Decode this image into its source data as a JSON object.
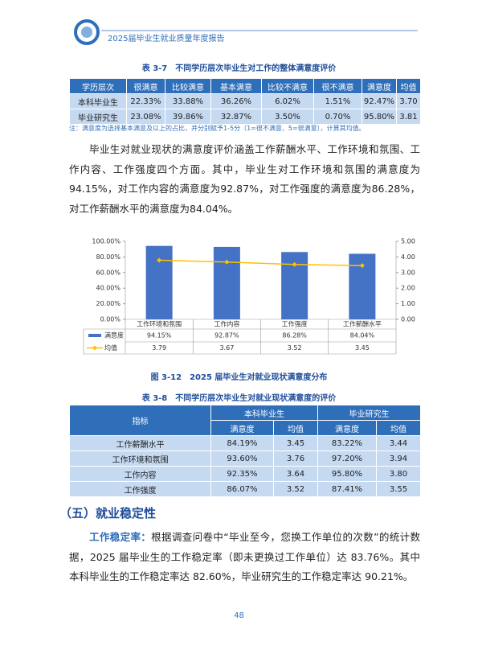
{
  "header": {
    "title": "2025届毕业生就业质量年度报告"
  },
  "table1": {
    "title": "表 3-7　不同学历层次毕业生对工作的整体满意度评价",
    "columns": [
      "学历层次",
      "很满意",
      "比较满意",
      "基本满意",
      "比较不满意",
      "很不满意",
      "满意度",
      "均值"
    ],
    "rows": [
      [
        "本科毕业生",
        "22.33%",
        "33.88%",
        "36.26%",
        "6.02%",
        "1.51%",
        "92.47%",
        "3.70"
      ],
      [
        "毕业研究生",
        "23.08%",
        "39.86%",
        "32.87%",
        "3.50%",
        "0.70%",
        "95.80%",
        "3.81"
      ]
    ],
    "note": "注：满意度为选择基本满意及以上的占比，并分别赋予1-5分（1=很不满意、5=很满意），计算其均值。"
  },
  "paragraph1": "毕业生对就业现状的满意度评价涵盖工作薪酬水平、工作环境和氛围、工作内容、工作强度四个方面。其中，毕业生对工作环境和氛围的满意度为 94.15%，对工作内容的满意度为92.87%，对工作强度的满意度为86.28%，对工作薪酬水平的满意度为84.04%。",
  "chart_data": {
    "type": "bar",
    "categories": [
      "工作环境和氛围",
      "工作内容",
      "工作强度",
      "工作薪酬水平"
    ],
    "series": [
      {
        "name": "满意度",
        "type": "bar",
        "color": "#4472c4",
        "values": [
          94.15,
          92.87,
          86.28,
          84.04
        ],
        "value_labels": [
          "94.15%",
          "92.87%",
          "86.28%",
          "84.04%"
        ]
      },
      {
        "name": "均值",
        "type": "line",
        "color": "#ffc000",
        "axis": "y2",
        "values": [
          3.79,
          3.67,
          3.52,
          3.45
        ]
      }
    ],
    "ylim": [
      0,
      100
    ],
    "yticks": [
      {
        "value": 0,
        "label": "0.00%"
      },
      {
        "value": 20,
        "label": "20.00%"
      },
      {
        "value": 40,
        "label": "40.00%"
      },
      {
        "value": 60,
        "label": "60.00%"
      },
      {
        "value": 80,
        "label": "80.00%"
      },
      {
        "value": 100,
        "label": "100.00%"
      }
    ],
    "y2lim": [
      0,
      5
    ],
    "y2ticks": [
      {
        "value": 0,
        "label": "0.00"
      },
      {
        "value": 1,
        "label": "1.00"
      },
      {
        "value": 2,
        "label": "2.00"
      },
      {
        "value": 3,
        "label": "3.00"
      },
      {
        "value": 4,
        "label": "4.00"
      },
      {
        "value": 5,
        "label": "5.00"
      }
    ]
  },
  "figure_caption": "图 3-12　2025 届毕业生对就业现状满意度分布",
  "table2": {
    "title": "表 3-8　不同学历层次毕业生对就业现状满意度的评价",
    "group_header": [
      "指标",
      "本科毕业生",
      "毕业研究生"
    ],
    "sub_header": [
      "满意度",
      "均值",
      "满意度",
      "均值"
    ],
    "rows": [
      [
        "工作薪酬水平",
        "84.19%",
        "3.45",
        "83.22%",
        "3.44"
      ],
      [
        "工作环境和氛围",
        "93.60%",
        "3.76",
        "97.20%",
        "3.94"
      ],
      [
        "工作内容",
        "92.35%",
        "3.64",
        "95.80%",
        "3.80"
      ],
      [
        "工作强度",
        "86.07%",
        "3.52",
        "87.41%",
        "3.55"
      ]
    ]
  },
  "section_heading": "（五）就业稳定性",
  "paragraph2": {
    "lead": "工作稳定率：",
    "text": "根据调查问卷中“毕业至今，您换工作单位的次数”的统计数据，2025 届毕业生的工作稳定率（即未更换过工作单位）达 83.76%。其中本科毕业生的工作稳定率达 82.60%，毕业研究生的工作稳定率达 90.21%。"
  },
  "page_number": "48"
}
